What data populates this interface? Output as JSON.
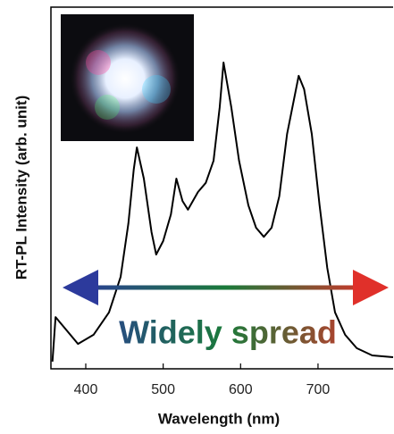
{
  "chart_data": {
    "type": "line",
    "x_label": "Wavelength (nm)",
    "y_label": "RT-PL Intensity (arb. unit)",
    "annotation": "Widely spread",
    "x": [
      357,
      361,
      390,
      410,
      430,
      445,
      455,
      462,
      466,
      475,
      485,
      491,
      500,
      510,
      517,
      525,
      532,
      545,
      555,
      565,
      573,
      578,
      588,
      598,
      610,
      620,
      630,
      640,
      650,
      660,
      675,
      682,
      692,
      702,
      712,
      722,
      735,
      750,
      770,
      797
    ],
    "series": [
      {
        "color": "#000000",
        "values": [
          2.0,
          14.3,
          6.9,
          9.4,
          15.6,
          25.4,
          40.2,
          55.1,
          61.2,
          52.6,
          37.8,
          31.6,
          35.3,
          42.7,
          52.6,
          46.4,
          44.0,
          48.9,
          51.4,
          57.5,
          72.3,
          84.7,
          72.3,
          57.5,
          45.2,
          39.0,
          36.5,
          39.0,
          47.7,
          64.9,
          81.0,
          77.3,
          64.9,
          45.2,
          27.9,
          15.6,
          9.4,
          5.7,
          3.7,
          3.2
        ]
      }
    ],
    "xlim": [
      355,
      797
    ],
    "xticks": [
      400,
      500,
      600,
      700
    ],
    "ylim": [
      0,
      100
    ]
  }
}
